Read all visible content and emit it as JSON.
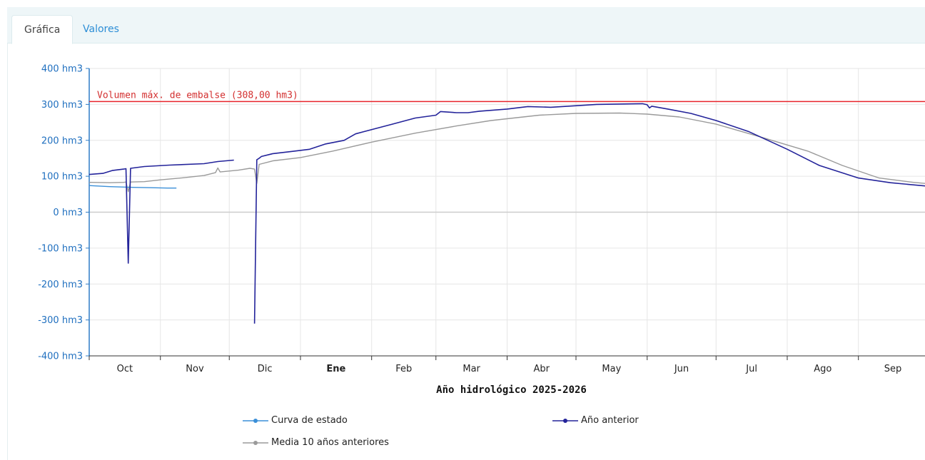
{
  "tabs": [
    {
      "label": "Gráfica",
      "active": true
    },
    {
      "label": "Valores",
      "active": false
    }
  ],
  "colors": {
    "curva": "#3a8fd8",
    "anterior": "#23239a",
    "media": "#9a9a9a",
    "max_line": "#e8242b",
    "max_label": "#d32f2f",
    "axis_tick_label": "#1f6fbf"
  },
  "chart_data": {
    "type": "line",
    "xlabel": "Año hidrológico 2025-2026",
    "x_tick_labels": [
      "Oct",
      "Nov",
      "Dic",
      "Ene",
      "Feb",
      "Mar",
      "Abr",
      "May",
      "Jun",
      "Jul",
      "Ago",
      "Sep"
    ],
    "x_bold_label": "Ene",
    "ylim": [
      -400,
      400
    ],
    "y_ticks": [
      400,
      300,
      200,
      100,
      0,
      -100,
      -200,
      -300,
      -400
    ],
    "y_unit": "hm3",
    "grid": true,
    "legend_position": "bottom",
    "reference_line": {
      "value": 308,
      "label": "Volumen máx. de embalse (308,00 hm3)"
    },
    "series": [
      {
        "name": "Curva de estado",
        "color_key": "curva",
        "x": [
          "2025-10-01",
          "2025-10-10",
          "2025-10-20",
          "2025-10-28",
          "2025-11-04",
          "2025-11-08"
        ],
        "y": [
          74,
          71,
          69,
          68,
          67,
          67
        ]
      },
      {
        "name": "Año anterior",
        "color_key": "anterior",
        "x": [
          "2025-10-01",
          "2025-10-07",
          "2025-10-11",
          "2025-10-16",
          "2025-10-17",
          "2025-10-18",
          "2025-10-19",
          "2025-10-25",
          "2025-11-05",
          "2025-11-20",
          "2025-11-26",
          "2025-12-03",
          "2025-12-07",
          "2025-12-12",
          "2025-12-13",
          "2025-12-14",
          "2025-12-15",
          "2025-12-20",
          "2025-12-28",
          "2026-01-05",
          "2026-01-12",
          "2026-01-20",
          "2026-01-25",
          "2026-02-10",
          "2026-02-20",
          "2026-03-01",
          "2026-03-03",
          "2026-03-10",
          "2026-03-15",
          "2026-03-20",
          "2026-04-01",
          "2026-04-10",
          "2026-04-20",
          "2026-05-10",
          "2026-05-30",
          "2026-06-01",
          "2026-06-02",
          "2026-06-03",
          "2026-06-10",
          "2026-06-20",
          "2026-07-01",
          "2026-07-15",
          "2026-08-01",
          "2026-08-15",
          "2026-09-01",
          "2026-09-15",
          "2026-09-30"
        ],
        "y": [
          105,
          108,
          116,
          120,
          121,
          -142,
          122,
          127,
          131,
          135,
          141,
          145,
          null,
          -310,
          146,
          150,
          155,
          163,
          169,
          175,
          190,
          200,
          218,
          245,
          262,
          270,
          280,
          277,
          277,
          281,
          287,
          294,
          292,
          300,
          302,
          299,
          290,
          295,
          287,
          275,
          255,
          225,
          175,
          130,
          95,
          82,
          73
        ]
      },
      {
        "name": "Media 10 años anteriores",
        "color_key": "media",
        "x": [
          "2025-10-01",
          "2025-10-10",
          "2025-10-16",
          "2025-10-17",
          "2025-10-18",
          "2025-10-19",
          "2025-10-25",
          "2025-11-01",
          "2025-11-10",
          "2025-11-20",
          "2025-11-25",
          "2025-11-26",
          "2025-11-27",
          "2025-12-05",
          "2025-12-10",
          "2025-12-12",
          "2025-12-13",
          "2025-12-14",
          "2025-12-20",
          "2026-01-01",
          "2026-01-15",
          "2026-02-01",
          "2026-02-20",
          "2026-03-10",
          "2026-03-25",
          "2026-04-15",
          "2026-05-01",
          "2026-05-20",
          "2026-06-01",
          "2026-06-15",
          "2026-07-01",
          "2026-07-20",
          "2026-08-10",
          "2026-08-25",
          "2026-09-10",
          "2026-09-25",
          "2026-09-30"
        ],
        "y": [
          83,
          82,
          83,
          84,
          57,
          84,
          85,
          90,
          95,
          102,
          110,
          123,
          112,
          117,
          122,
          120,
          80,
          133,
          143,
          152,
          170,
          195,
          220,
          240,
          255,
          270,
          275,
          276,
          273,
          265,
          245,
          210,
          170,
          130,
          95,
          83,
          80
        ]
      }
    ]
  }
}
